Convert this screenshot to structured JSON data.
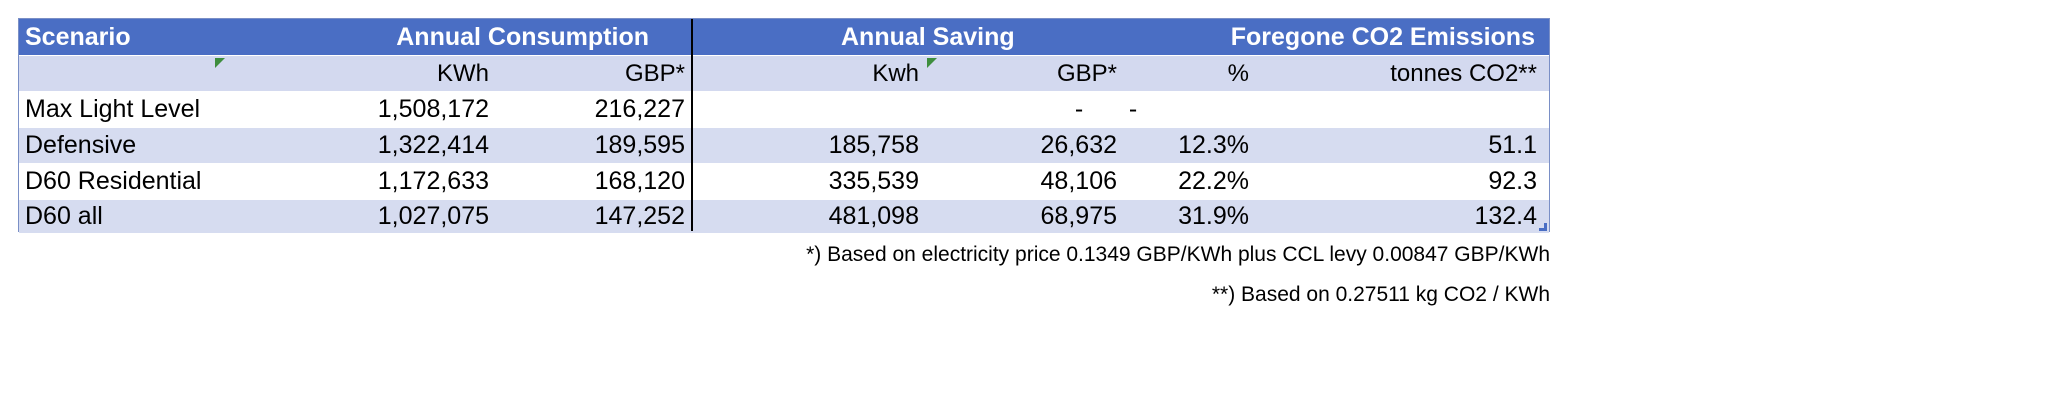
{
  "header": {
    "scenario": "Scenario",
    "annual_consumption": "Annual  Consumption",
    "annual_saving": "Annual  Saving",
    "foregone": "Foregone CO2 Emissions"
  },
  "subheader": {
    "cons_kwh": "KWh",
    "cons_gbp": "GBP*",
    "sav_kwh": "Kwh",
    "sav_gbp": "GBP*",
    "pct": "%",
    "co2": "tonnes CO2**"
  },
  "rows": [
    {
      "scenario": "Max Light Level",
      "cons_kwh": "1,508,172",
      "cons_gbp": "216,227",
      "sav_kwh": "",
      "sav_gbp": "-",
      "pct": "-",
      "co2": ""
    },
    {
      "scenario": "Defensive",
      "cons_kwh": "1,322,414",
      "cons_gbp": "189,595",
      "sav_kwh": "185,758",
      "sav_gbp": "26,632",
      "pct": "12.3%",
      "co2": "51.1"
    },
    {
      "scenario": "D60 Residential",
      "cons_kwh": "1,172,633",
      "cons_gbp": "168,120",
      "sav_kwh": "335,539",
      "sav_gbp": "48,106",
      "pct": "22.2%",
      "co2": "92.3"
    },
    {
      "scenario": "D60 all",
      "cons_kwh": "1,027,075",
      "cons_gbp": "147,252",
      "sav_kwh": "481,098",
      "sav_gbp": "68,975",
      "pct": "31.9%",
      "co2": "132.4"
    }
  ],
  "notes": {
    "note1": "*) Based on electricity price 0.1349 GBP/KWh plus CCL levy 0.00847 GBP/KWh",
    "note2": "**) Based on 0.27511 kg CO2 / KWh"
  },
  "colors": {
    "header_bg": "#4a6ec4",
    "band_bg": "#d6dcf0",
    "comment_marker": "#3e8e3e"
  }
}
